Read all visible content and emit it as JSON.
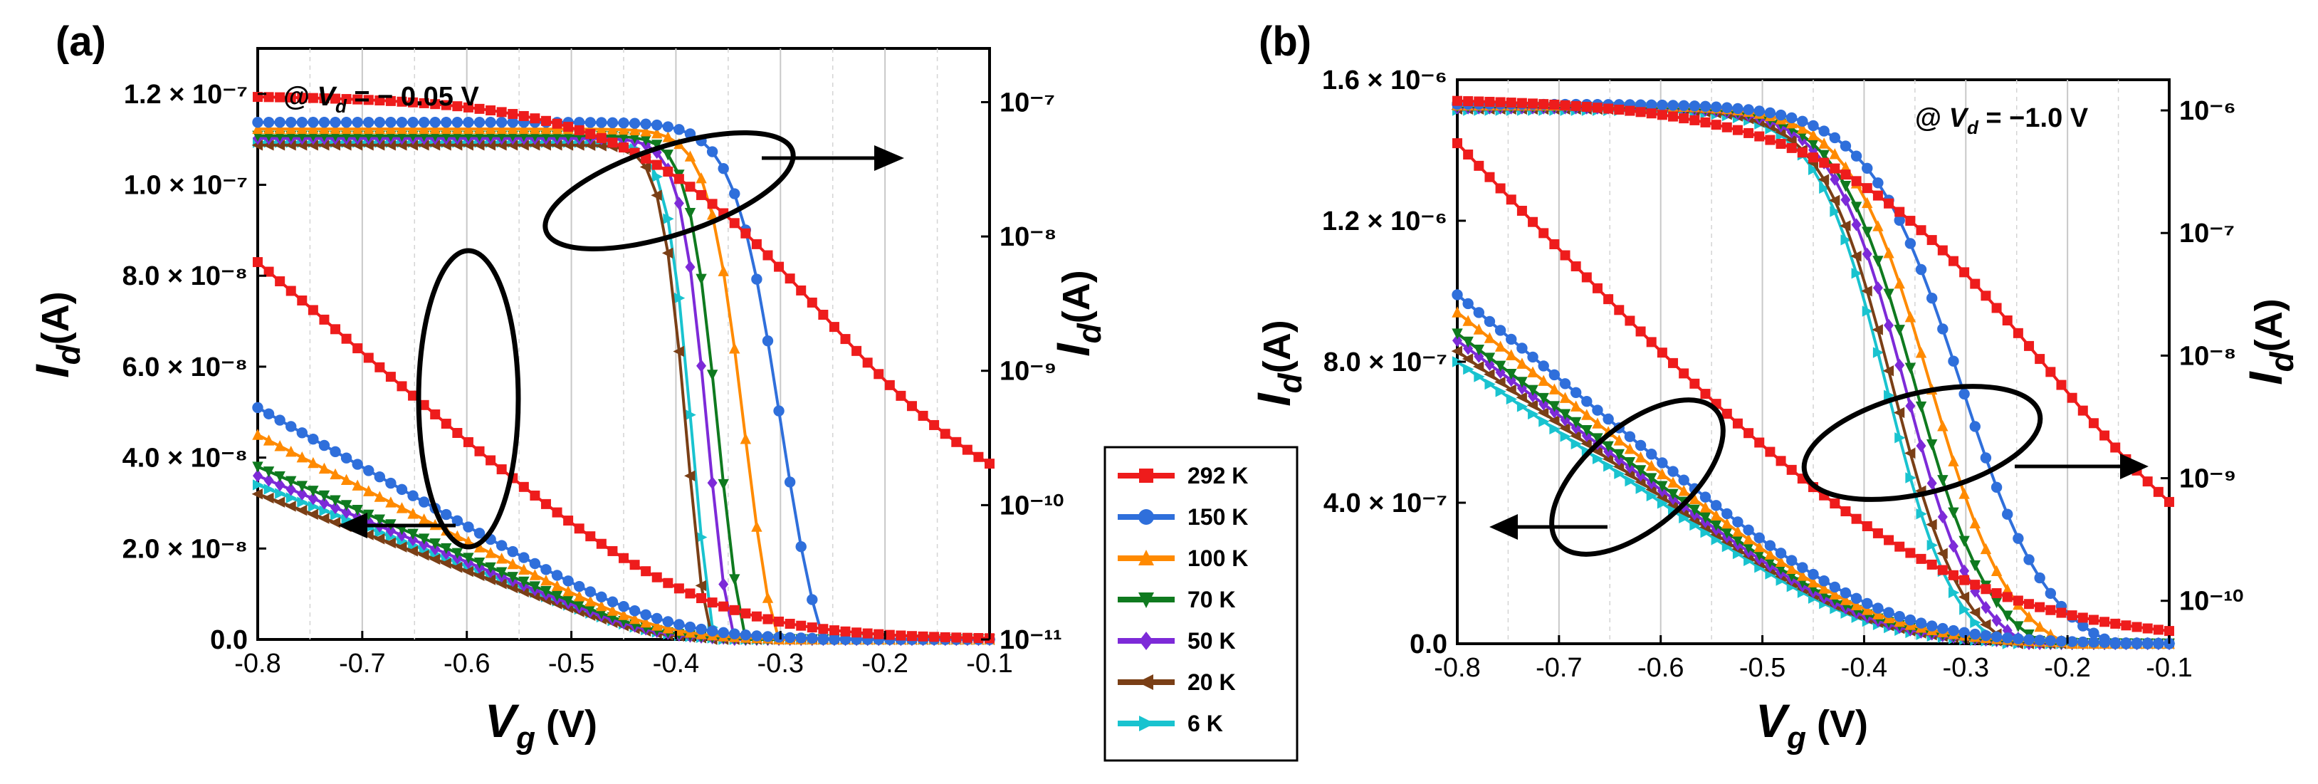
{
  "chart_data": [
    {
      "panel": "(a)",
      "type": "line",
      "annotation": "@ V_d = − 0.05 V",
      "annotation_parts": {
        "prefix": "@ ",
        "v": "V",
        "sub": "d",
        "suffix": " = − 0.05 V"
      },
      "xlabel": {
        "main": "V",
        "sub": "g",
        "unit": " (V)"
      },
      "ylabel_left": {
        "main": "I",
        "sub": "d",
        "unit": "(A)"
      },
      "ylabel_right": {
        "main": "I",
        "sub": "d",
        "unit": "(A)"
      },
      "xlim": [
        -0.8,
        -0.1
      ],
      "xticks": [
        "-0.8",
        "-0.7",
        "-0.6",
        "-0.5",
        "-0.4",
        "-0.3",
        "-0.2",
        "-0.1"
      ],
      "ylim_left": [
        0,
        1.3e-07
      ],
      "yticks_left": [
        {
          "value": 0,
          "label": "0.0"
        },
        {
          "value": 2e-08,
          "label": "2.0 × 10⁻⁸"
        },
        {
          "value": 4e-08,
          "label": "4.0 × 10⁻⁸"
        },
        {
          "value": 6e-08,
          "label": "6.0 × 10⁻⁸"
        },
        {
          "value": 8e-08,
          "label": "8.0 × 10⁻⁸"
        },
        {
          "value": 1e-07,
          "label": "1.0 × 10⁻⁷"
        },
        {
          "value": 1.2e-07,
          "label": "1.2 × 10⁻⁷"
        }
      ],
      "ylim_right_log": [
        -11,
        -6.6
      ],
      "yticks_right": [
        {
          "exp": -11,
          "label": "10⁻¹¹"
        },
        {
          "exp": -10,
          "label": "10⁻¹⁰"
        },
        {
          "exp": -9,
          "label": "10⁻⁹"
        },
        {
          "exp": -8,
          "label": "10⁻⁸"
        },
        {
          "exp": -7,
          "label": "10⁻⁷"
        }
      ],
      "series": [
        {
          "name": "292 K",
          "color": "#ee1c1c",
          "marker": "square",
          "linear": {
            "sat": 8.3e-08,
            "vth": -0.385,
            "k": 0.072
          },
          "log": {
            "hi": -6.95,
            "lo": -10.2,
            "v0": -0.26,
            "w": 0.095
          }
        },
        {
          "name": "150 K",
          "color": "#2f6fdb",
          "marker": "circle",
          "linear": {
            "sat": 5.1e-08,
            "vth": -0.41,
            "k": 0.045
          },
          "log": {
            "hi": -7.15,
            "lo": -11.6,
            "v0": -0.3,
            "w": 0.022
          }
        },
        {
          "name": "100 K",
          "color": "#ff8a00",
          "marker": "triangle-up",
          "linear": {
            "sat": 4.5e-08,
            "vth": -0.415,
            "k": 0.035
          },
          "log": {
            "hi": -7.2,
            "lo": -11.6,
            "v0": -0.335,
            "w": 0.017
          }
        },
        {
          "name": "70 K",
          "color": "#0f7a1f",
          "marker": "triangle-down",
          "linear": {
            "sat": 3.8e-08,
            "vth": -0.418,
            "k": 0.03
          },
          "log": {
            "hi": -7.25,
            "lo": -11.6,
            "v0": -0.36,
            "w": 0.014
          }
        },
        {
          "name": "50 K",
          "color": "#7d2ad8",
          "marker": "diamond",
          "linear": {
            "sat": 3.6e-08,
            "vth": -0.42,
            "k": 0.028
          },
          "log": {
            "hi": -7.27,
            "lo": -11.6,
            "v0": -0.37,
            "w": 0.013
          }
        },
        {
          "name": "20 K",
          "color": "#7a3f16",
          "marker": "triangle-left",
          "linear": {
            "sat": 3.2e-08,
            "vth": -0.422,
            "k": 0.026
          },
          "log": {
            "hi": -7.32,
            "lo": -11.6,
            "v0": -0.39,
            "w": 0.012
          }
        },
        {
          "name": "6 K",
          "color": "#19c3cf",
          "marker": "triangle-right",
          "linear": {
            "sat": 3.4e-08,
            "vth": -0.42,
            "k": 0.027
          },
          "log": {
            "hi": -7.3,
            "lo": -11.6,
            "v0": -0.385,
            "w": 0.012
          }
        }
      ]
    },
    {
      "panel": "(b)",
      "type": "line",
      "annotation_parts": {
        "prefix": "@ ",
        "v": "V",
        "sub": "d",
        "suffix": " = −1.0 V"
      },
      "xlabel": {
        "main": "V",
        "sub": "g",
        "unit": " (V)"
      },
      "ylabel_left": {
        "main": "I",
        "sub": "d",
        "unit": "(A)"
      },
      "ylabel_right": {
        "main": "I",
        "sub": "d",
        "unit": "(A)"
      },
      "xlim": [
        -0.8,
        -0.1
      ],
      "xticks": [
        "-0.8",
        "-0.7",
        "-0.6",
        "-0.5",
        "-0.4",
        "-0.3",
        "-0.2",
        "-0.1"
      ],
      "ylim_left": [
        0,
        1.6e-06
      ],
      "yticks_left": [
        {
          "value": 0,
          "label": "0.0"
        },
        {
          "value": 4e-07,
          "label": "4.0 × 10⁻⁷"
        },
        {
          "value": 8e-07,
          "label": "8.0 × 10⁻⁷"
        },
        {
          "value": 1.2e-06,
          "label": "1.2 × 10⁻⁶"
        },
        {
          "value": 1.6e-06,
          "label": "1.6 × 10⁻⁶"
        }
      ],
      "ylim_right_log": [
        -10.35,
        -5.75
      ],
      "yticks_right": [
        {
          "exp": -10,
          "label": "10⁻¹⁰"
        },
        {
          "exp": -9,
          "label": "10⁻⁹"
        },
        {
          "exp": -8,
          "label": "10⁻⁸"
        },
        {
          "exp": -7,
          "label": "10⁻⁷"
        },
        {
          "exp": -6,
          "label": "10⁻⁶"
        }
      ],
      "series": [
        {
          "name": "292 K",
          "color": "#ee1c1c",
          "marker": "square",
          "linear": {
            "sat": 1.42e-06,
            "vth": -0.34,
            "k": 0.11
          },
          "log": {
            "hi": -5.9,
            "lo": -10.3,
            "v0": -0.22,
            "w": 0.11
          }
        },
        {
          "name": "150 K",
          "color": "#2f6fdb",
          "marker": "circle",
          "linear": {
            "sat": 9.9e-07,
            "vth": -0.385,
            "k": 0.06
          },
          "log": {
            "hi": -5.95,
            "lo": -10.5,
            "v0": -0.305,
            "w": 0.045
          }
        },
        {
          "name": "100 K",
          "color": "#ff8a00",
          "marker": "triangle-up",
          "linear": {
            "sat": 9.4e-07,
            "vth": -0.39,
            "k": 0.055
          },
          "log": {
            "hi": -5.96,
            "lo": -10.5,
            "v0": -0.335,
            "w": 0.04
          }
        },
        {
          "name": "70 K",
          "color": "#0f7a1f",
          "marker": "triangle-down",
          "linear": {
            "sat": 8.8e-07,
            "vth": -0.392,
            "k": 0.052
          },
          "log": {
            "hi": -5.97,
            "lo": -10.5,
            "v0": -0.35,
            "w": 0.038
          }
        },
        {
          "name": "50 K",
          "color": "#7d2ad8",
          "marker": "diamond",
          "linear": {
            "sat": 8.6e-07,
            "vth": -0.395,
            "k": 0.05
          },
          "log": {
            "hi": -5.98,
            "lo": -10.5,
            "v0": -0.36,
            "w": 0.036
          }
        },
        {
          "name": "20 K",
          "color": "#7a3f16",
          "marker": "triangle-left",
          "linear": {
            "sat": 8.3e-07,
            "vth": -0.398,
            "k": 0.05
          },
          "log": {
            "hi": -5.99,
            "lo": -10.5,
            "v0": -0.372,
            "w": 0.035
          }
        },
        {
          "name": "6 K",
          "color": "#19c3cf",
          "marker": "triangle-right",
          "linear": {
            "sat": 8e-07,
            "vth": -0.4,
            "k": 0.048
          },
          "log": {
            "hi": -6.0,
            "lo": -10.5,
            "v0": -0.378,
            "w": 0.034
          }
        }
      ]
    }
  ],
  "legend": {
    "entries": [
      "292 K",
      "150 K",
      "100 K",
      "70 K",
      "50 K",
      "20 K",
      "6 K"
    ],
    "colors": [
      "#ee1c1c",
      "#2f6fdb",
      "#ff8a00",
      "#0f7a1f",
      "#7d2ad8",
      "#7a3f16",
      "#19c3cf"
    ],
    "markers": [
      "square",
      "circle",
      "triangle-up",
      "triangle-down",
      "diamond",
      "triangle-left",
      "triangle-right"
    ]
  }
}
